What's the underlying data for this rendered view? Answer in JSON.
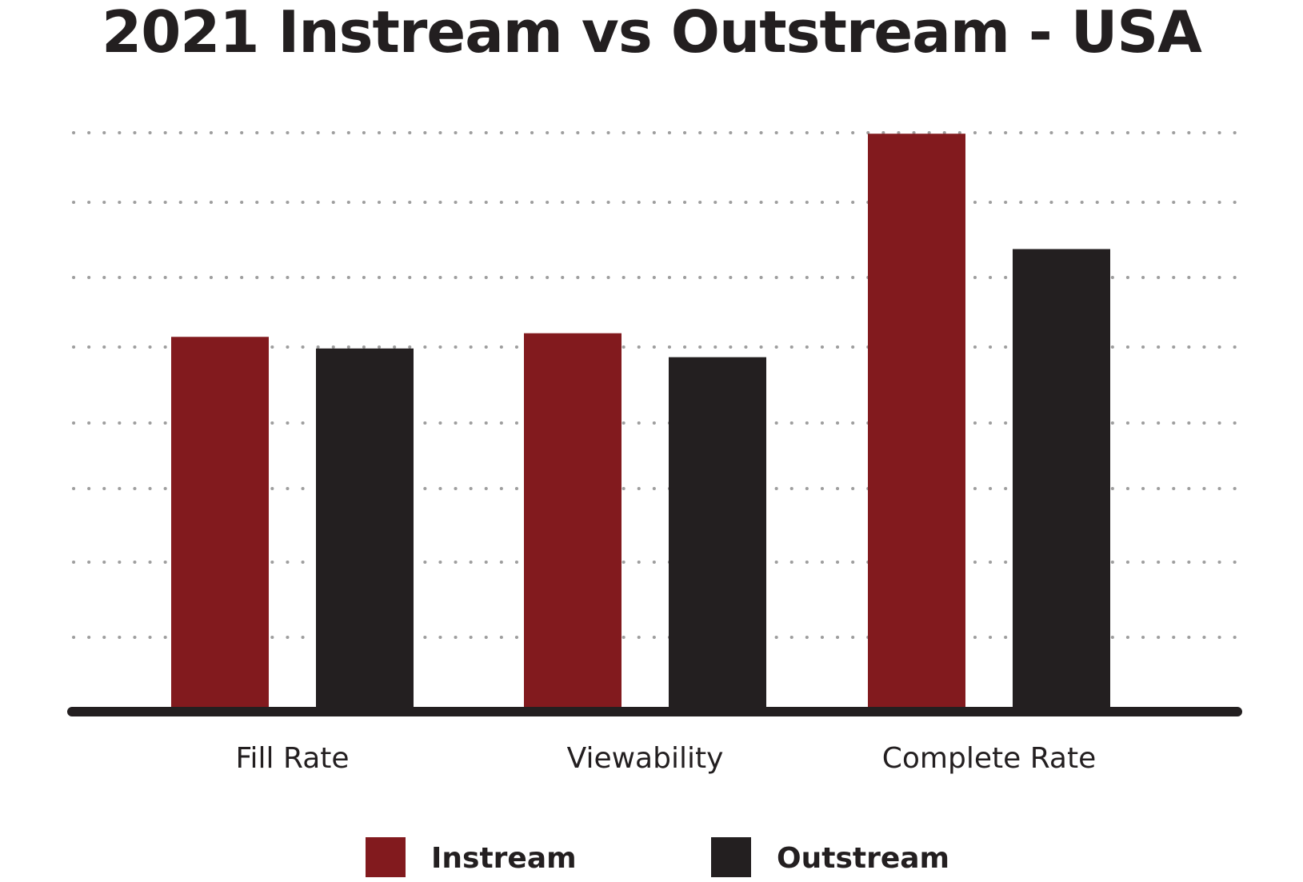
{
  "chart_data": {
    "type": "bar",
    "title": "2021 Instream vs Outstream - USA",
    "categories": [
      "Fill Rate",
      "Viewability",
      "Complete Rate"
    ],
    "series": [
      {
        "name": "Instream",
        "color": "#821a1e",
        "values": [
          51,
          51.5,
          79
        ]
      },
      {
        "name": "Outstream",
        "color": "#231f20",
        "values": [
          49.4,
          48.2,
          63.1
        ]
      }
    ],
    "ylim": [
      0,
      82
    ],
    "grid": true,
    "grid_style": "dotted",
    "legend_position": "bottom-center"
  }
}
